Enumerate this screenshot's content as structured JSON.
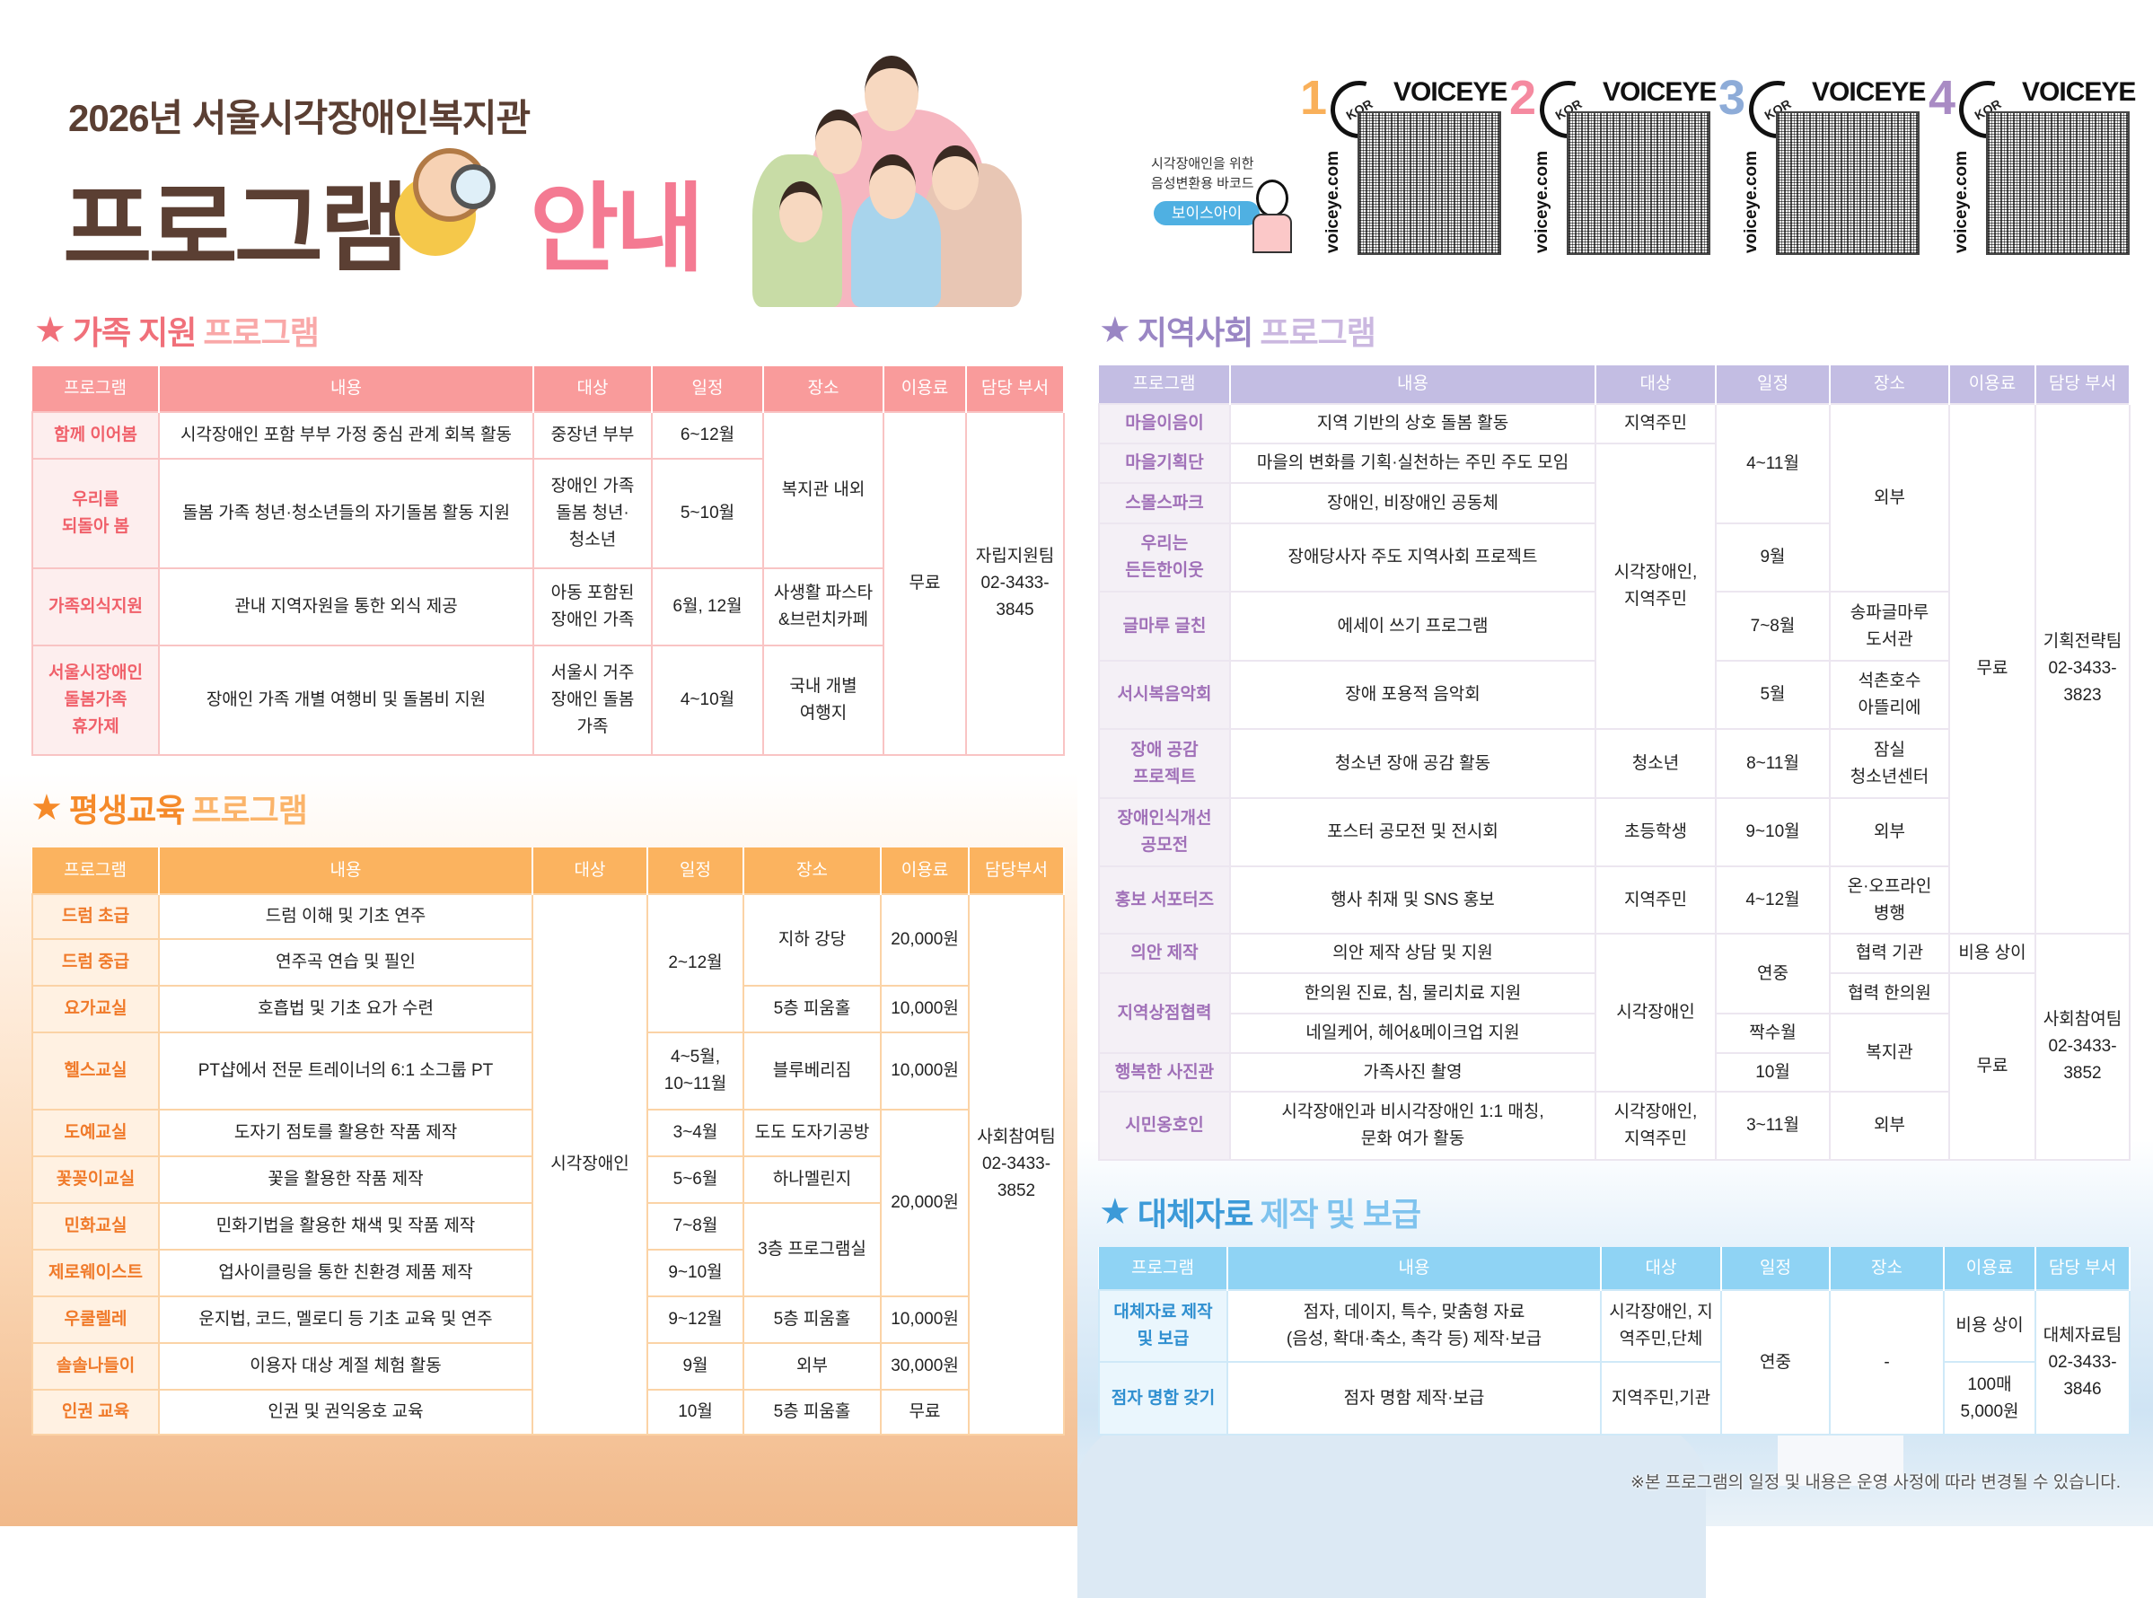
{
  "header": {
    "title_sub": "2026년 서울시각장애인복지관",
    "title_main": "프로그램",
    "title_accent": "안내"
  },
  "barcode": {
    "note": "시각장애인을 위한\n음성변환용 바코드",
    "pill": "보이스아이",
    "panels": [
      {
        "num": "1",
        "kor": "KOR",
        "brand": "VOICEYE",
        "url": "voiceye.com",
        "color": "#f9b05a"
      },
      {
        "num": "2",
        "kor": "KOR",
        "brand": "VOICEYE",
        "url": "voiceye.com",
        "color": "#f58aa0"
      },
      {
        "num": "3",
        "kor": "KOR",
        "brand": "VOICEYE",
        "url": "voiceye.com",
        "color": "#8eacd8"
      },
      {
        "num": "4",
        "kor": "KOR",
        "brand": "VOICEYE",
        "url": "voiceye.com",
        "color": "#a98bc4"
      }
    ]
  },
  "colors": {
    "family": {
      "header": "#f99b9b",
      "prog_bg": "#fdeeee",
      "prog_text": "#f0606a",
      "border": "#f9c4c4",
      "title1": "#f0707a",
      "title2": "#f9a8a8"
    },
    "lifelong": {
      "header": "#fbb35f",
      "prog_bg": "#fff1e2",
      "prog_text": "#f07a2a",
      "border": "#fbd3a6",
      "title1": "#f58a2a",
      "title2": "#fbb46a"
    },
    "community": {
      "header": "#c3bde3",
      "prog_bg": "#f4f0f6",
      "prog_text": "#a070b8",
      "border": "#ece6f0",
      "title1": "#9a86c4",
      "title2": "#cbb8e0"
    },
    "alt": {
      "header": "#8fd3f4",
      "prog_bg": "#eaf6fd",
      "prog_text": "#2f8fd0",
      "border": "#cfe9f8",
      "title1": "#3c9ad8",
      "title2": "#7fc3ee"
    }
  },
  "sections": {
    "family": {
      "title1": "가족 지원",
      "title2": "프로그램",
      "headers": [
        "프로그램",
        "내용",
        "대상",
        "일정",
        "장소",
        "이용료",
        "담당 부서"
      ],
      "rows": [
        [
          {
            "t": "함께 이어봄"
          },
          {
            "t": "시각장애인 포함 부부 가정 중심 관계 회복 활동"
          },
          {
            "t": "중장년 부부"
          },
          {
            "t": "6~12월"
          },
          {
            "t": "복지관 내외",
            "rs": 2
          },
          {
            "t": "무료",
            "rs": 4
          },
          {
            "t": "자립지원팀\n02-3433-\n3845",
            "rs": 4
          }
        ],
        [
          {
            "t": "우리를\n되돌아 봄"
          },
          {
            "t": "돌봄 가족 청년·청소년들의 자기돌봄 활동 지원"
          },
          {
            "t": "장애인 가족\n돌봄 청년·\n청소년"
          },
          {
            "t": "5~10월"
          }
        ],
        [
          {
            "t": "가족외식지원"
          },
          {
            "t": "관내 지역자원을 통한 외식 제공"
          },
          {
            "t": "아동 포함된\n장애인 가족"
          },
          {
            "t": "6월, 12월"
          },
          {
            "t": "사생활 파스타\n&브런치카페"
          }
        ],
        [
          {
            "t": "서울시장애인\n돌봄가족\n휴가제"
          },
          {
            "t": "장애인 가족 개별 여행비 및 돌봄비 지원"
          },
          {
            "t": "서울시 거주\n장애인 돌봄\n가족"
          },
          {
            "t": "4~10월"
          },
          {
            "t": "국내 개별\n여행지"
          }
        ]
      ]
    },
    "lifelong": {
      "title1": "평생교육",
      "title2": "프로그램",
      "headers": [
        "프로그램",
        "내용",
        "대상",
        "일정",
        "장소",
        "이용료",
        "담당부서"
      ],
      "rows": [
        [
          {
            "t": "드럼 초급"
          },
          {
            "t": "드럼 이해 및 기초 연주"
          },
          {
            "t": "시각장애인",
            "rs": 11
          },
          {
            "t": "2~12월",
            "rs": 3
          },
          {
            "t": "지하 강당",
            "rs": 2
          },
          {
            "t": "20,000원",
            "rs": 2
          },
          {
            "t": "사회참여팀\n02-3433-\n3852",
            "rs": 11
          }
        ],
        [
          {
            "t": "드럼 중급"
          },
          {
            "t": "연주곡 연습 및 필인"
          }
        ],
        [
          {
            "t": "요가교실"
          },
          {
            "t": "호흡법 및 기초 요가 수련"
          },
          {
            "t": "5층 피움홀"
          },
          {
            "t": "10,000원"
          }
        ],
        [
          {
            "t": "헬스교실"
          },
          {
            "t": "PT샵에서 전문 트레이너의 6:1 소그룹 PT"
          },
          {
            "t": "4~5월,\n10~11월"
          },
          {
            "t": "블루베리짐"
          },
          {
            "t": "10,000원"
          }
        ],
        [
          {
            "t": "도예교실"
          },
          {
            "t": "도자기 점토를 활용한 작품 제작"
          },
          {
            "t": "3~4월"
          },
          {
            "t": "도도 도자기공방"
          },
          {
            "t": "20,000원",
            "rs": 4
          }
        ],
        [
          {
            "t": "꽃꽂이교실"
          },
          {
            "t": "꽃을 활용한 작품 제작"
          },
          {
            "t": "5~6월"
          },
          {
            "t": "하나멜린지"
          }
        ],
        [
          {
            "t": "민화교실"
          },
          {
            "t": "민화기법을 활용한 채색 및 작품 제작"
          },
          {
            "t": "7~8월"
          },
          {
            "t": "3층 프로그램실",
            "rs": 2
          }
        ],
        [
          {
            "t": "제로웨이스트"
          },
          {
            "t": "업사이클링을 통한 친환경 제품 제작"
          },
          {
            "t": "9~10월"
          }
        ],
        [
          {
            "t": "우쿨렐레"
          },
          {
            "t": "운지법, 코드, 멜로디 등 기초 교육 및 연주"
          },
          {
            "t": "9~12월"
          },
          {
            "t": "5층 피움홀"
          },
          {
            "t": "10,000원"
          }
        ],
        [
          {
            "t": "솔솔나들이"
          },
          {
            "t": "이용자 대상 계절 체험 활동"
          },
          {
            "t": "9월"
          },
          {
            "t": "외부"
          },
          {
            "t": "30,000원"
          }
        ],
        [
          {
            "t": "인권 교육"
          },
          {
            "t": "인권 및 권익옹호 교육"
          },
          {
            "t": "10월"
          },
          {
            "t": "5층 피움홀"
          },
          {
            "t": "무료"
          }
        ]
      ]
    },
    "community": {
      "title1": "지역사회",
      "title2": "프로그램",
      "headers": [
        "프로그램",
        "내용",
        "대상",
        "일정",
        "장소",
        "이용료",
        "담당 부서"
      ],
      "rows": [
        [
          {
            "t": "마을이음이"
          },
          {
            "t": "지역 기반의 상호 돌봄 활동"
          },
          {
            "t": "지역주민"
          },
          {
            "t": "4~11월",
            "rs": 3
          },
          {
            "t": "외부",
            "rs": 4
          },
          {
            "t": "무료",
            "rs": 9
          },
          {
            "t": "기획전략팀\n02-3433-\n3823",
            "rs": 9
          }
        ],
        [
          {
            "t": "마을기획단"
          },
          {
            "t": "마을의 변화를 기획·실천하는 주민 주도 모임"
          },
          {
            "t": "시각장애인,\n지역주민",
            "rs": 5
          }
        ],
        [
          {
            "t": "스몰스파크"
          },
          {
            "t": "장애인, 비장애인 공동체"
          }
        ],
        [
          {
            "t": "우리는\n든든한이웃"
          },
          {
            "t": "장애당사자 주도 지역사회 프로젝트"
          },
          {
            "t": "9월"
          }
        ],
        [
          {
            "t": "글마루 글친"
          },
          {
            "t": "에세이 쓰기 프로그램"
          },
          {
            "t": "7~8월"
          },
          {
            "t": "송파글마루\n도서관"
          }
        ],
        [
          {
            "t": "서시복음악회"
          },
          {
            "t": "장애 포용적 음악회"
          },
          {
            "t": "5월"
          },
          {
            "t": "석촌호수\n아뜰리에"
          }
        ],
        [
          {
            "t": "장애 공감\n프로젝트"
          },
          {
            "t": "청소년 장애 공감 활동"
          },
          {
            "t": "청소년"
          },
          {
            "t": "8~11월"
          },
          {
            "t": "잠실\n청소년센터"
          }
        ],
        [
          {
            "t": "장애인식개선\n공모전"
          },
          {
            "t": "포스터 공모전 및 전시회"
          },
          {
            "t": "초등학생"
          },
          {
            "t": "9~10월"
          },
          {
            "t": "외부"
          }
        ],
        [
          {
            "t": "홍보 서포터즈"
          },
          {
            "t": "행사 취재 및 SNS 홍보"
          },
          {
            "t": "지역주민"
          },
          {
            "t": "4~12월"
          },
          {
            "t": "온·오프라인\n병행"
          }
        ],
        [
          {
            "t": "의안 제작"
          },
          {
            "t": "의안 제작 상담 및 지원"
          },
          {
            "t": "시각장애인",
            "rs": 4
          },
          {
            "t": "연중",
            "rs": 2
          },
          {
            "t": "협력 기관"
          },
          {
            "t": "비용 상이"
          },
          {
            "t": "사회참여팀\n02-3433-\n3852",
            "rs": 5
          }
        ],
        [
          {
            "t": "지역상점협력",
            "rs": 2
          },
          {
            "t": "한의원 진료, 침, 물리치료 지원"
          },
          {
            "t": "협력 한의원"
          },
          {
            "t": "무료",
            "rs": 4
          }
        ],
        [
          {
            "t": "네일케어, 헤어&메이크업 지원"
          },
          {
            "t": "짝수월"
          },
          {
            "t": "복지관",
            "rs": 2
          }
        ],
        [
          {
            "t": "행복한 사진관"
          },
          {
            "t": "가족사진 촬영"
          },
          {
            "t": "10월"
          }
        ],
        [
          {
            "t": "시민옹호인"
          },
          {
            "t": "시각장애인과 비시각장애인 1:1 매칭,\n문화 여가 활동"
          },
          {
            "t": "시각장애인,\n지역주민"
          },
          {
            "t": "3~11월"
          },
          {
            "t": "외부"
          }
        ]
      ]
    },
    "alt": {
      "title1": "대체자료",
      "title2": "제작 및 보급",
      "headers": [
        "프로그램",
        "내용",
        "대상",
        "일정",
        "장소",
        "이용료",
        "담당 부서"
      ],
      "rows": [
        [
          {
            "t": "대체자료 제작\n및 보급"
          },
          {
            "t": "점자, 데이지, 특수, 맞춤형 자료\n(음성, 확대·축소, 촉각 등) 제작·보급"
          },
          {
            "t": "시각장애인, 지\n역주민,단체"
          },
          {
            "t": "연중",
            "rs": 2
          },
          {
            "t": "-",
            "rs": 2
          },
          {
            "t": "비용 상이"
          },
          {
            "t": "대체자료팀\n02-3433-\n3846",
            "rs": 2
          }
        ],
        [
          {
            "t": "점자 명함 갖기"
          },
          {
            "t": "점자 명함 제작·보급"
          },
          {
            "t": "지역주민,기관"
          },
          {
            "t": "100매\n5,000원"
          }
        ]
      ]
    }
  },
  "footer": {
    "note": "※본 프로그램의 일정 및 내용은 운영 사정에 따라 변경될 수 있습니다."
  }
}
